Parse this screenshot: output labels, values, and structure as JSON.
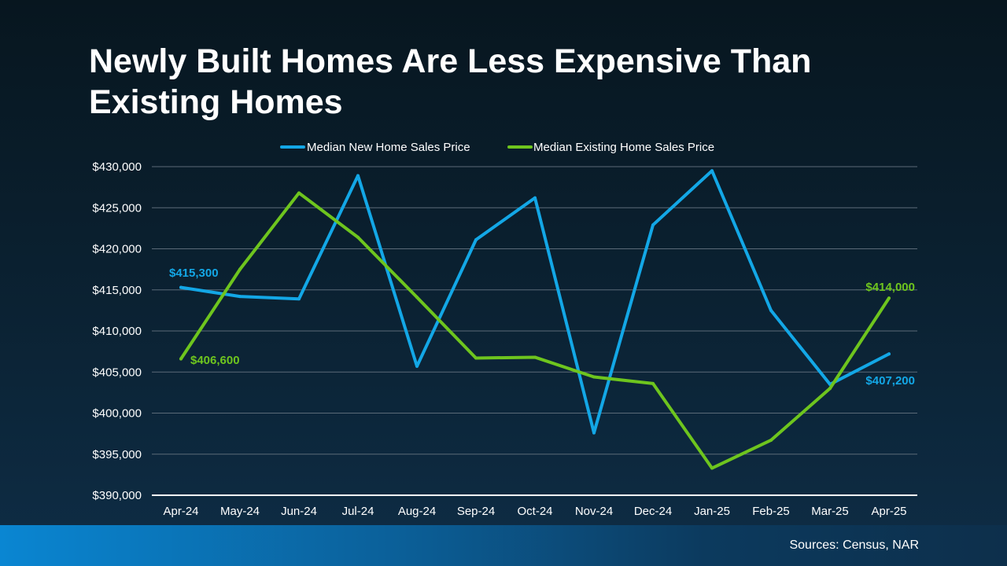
{
  "title": "Newly Built Homes Are Less Expensive Than Existing Homes",
  "footer": {
    "source": "Sources: Census, NAR"
  },
  "colors": {
    "new": "#13a7e6",
    "existing": "#6ec51e"
  },
  "chart_data": {
    "type": "line",
    "title": "Newly Built Homes Are Less Expensive Than Existing Homes",
    "xlabel": "",
    "ylabel": "",
    "categories": [
      "Apr-24",
      "May-24",
      "Jun-24",
      "Jul-24",
      "Aug-24",
      "Sep-24",
      "Oct-24",
      "Nov-24",
      "Dec-24",
      "Jan-25",
      "Feb-25",
      "Mar-25",
      "Apr-25"
    ],
    "ylim": [
      390000,
      430000
    ],
    "yticks": [
      390000,
      395000,
      400000,
      405000,
      410000,
      415000,
      420000,
      425000,
      430000
    ],
    "ytick_labels": [
      "$390,000",
      "$395,000",
      "$400,000",
      "$405,000",
      "$410,000",
      "$415,000",
      "$420,000",
      "$425,000",
      "$430,000"
    ],
    "grid": true,
    "legend": "top",
    "series": [
      {
        "name": "Median New Home Sales Price",
        "color": "#13a7e6",
        "values": [
          415300,
          414200,
          413900,
          428900,
          405700,
          421100,
          426200,
          397600,
          422900,
          429500,
          412500,
          403500,
          407200
        ],
        "data_labels": {
          "0": "$415,300",
          "12": "$407,200"
        }
      },
      {
        "name": "Median Existing Home Sales Price",
        "color": "#6ec51e",
        "values": [
          406600,
          417500,
          426800,
          421400,
          414100,
          406700,
          406800,
          404400,
          403600,
          393300,
          396700,
          403000,
          414000
        ],
        "data_labels": {
          "0": "$406,600",
          "12": "$414,000"
        }
      }
    ]
  }
}
